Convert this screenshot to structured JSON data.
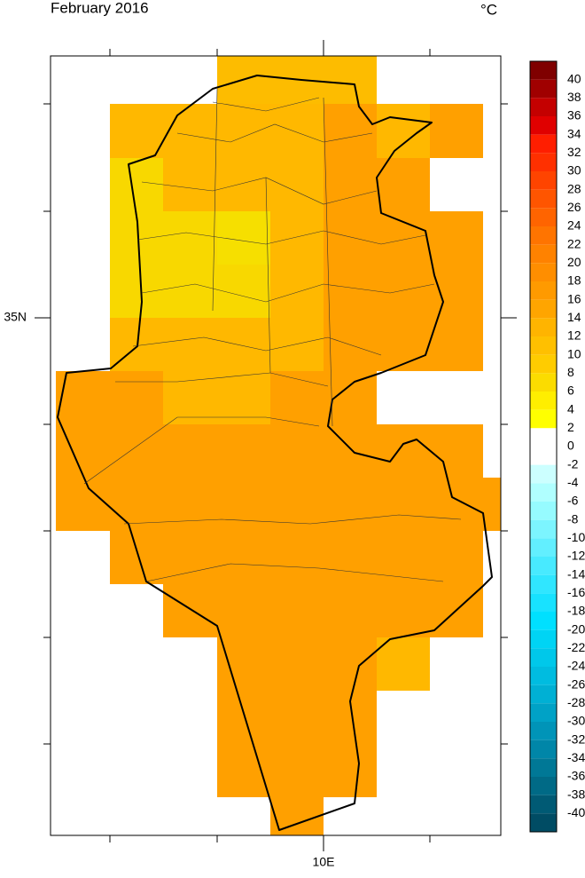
{
  "title": "February 2016",
  "unit": "°C",
  "axes": {
    "y_label": "35N",
    "x_label": "10E"
  },
  "colorbar": {
    "labels": [
      40,
      38,
      36,
      34,
      32,
      30,
      28,
      26,
      24,
      22,
      20,
      18,
      16,
      14,
      12,
      10,
      8,
      6,
      4,
      2,
      0,
      -2,
      -4,
      -6,
      -8,
      -10,
      -12,
      -14,
      -16,
      -18,
      -20,
      -22,
      -24,
      -26,
      -28,
      -30,
      -32,
      -34,
      -36,
      -38,
      -40
    ],
    "colors": [
      "#7f0000",
      "#a00000",
      "#c40000",
      "#e00000",
      "#ff1e00",
      "#ff3000",
      "#ff4400",
      "#ff5500",
      "#ff6400",
      "#ff7400",
      "#ff8200",
      "#ff8e00",
      "#ff9a00",
      "#ffa500",
      "#ffb400",
      "#ffc000",
      "#ffcc00",
      "#fbdc00",
      "#ffee00",
      "#ffff00",
      "#ffffff",
      "#ffffff",
      "#ccffff",
      "#b0ffff",
      "#96fbff",
      "#7cf5ff",
      "#62efff",
      "#48eaff",
      "#30e6ff",
      "#18e2ff",
      "#00e0ff",
      "#00d4f4",
      "#00c8ea",
      "#00bce0",
      "#00b0d4",
      "#00a2c6",
      "#0094b8",
      "#0086a8",
      "#007896",
      "#006a86",
      "#005a74",
      "#004c64"
    ]
  }
}
